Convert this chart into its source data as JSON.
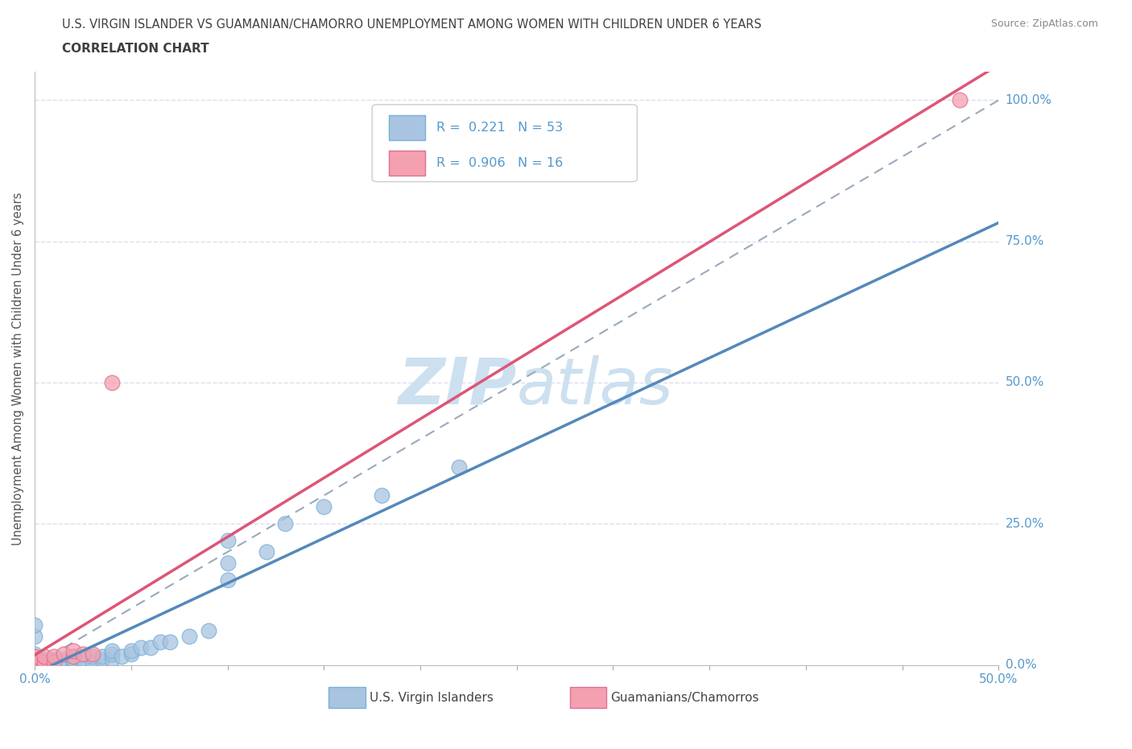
{
  "title_line1": "U.S. VIRGIN ISLANDER VS GUAMANIAN/CHAMORRO UNEMPLOYMENT AMONG WOMEN WITH CHILDREN UNDER 6 YEARS",
  "title_line2": "CORRELATION CHART",
  "source": "Source: ZipAtlas.com",
  "ylabel": "Unemployment Among Women with Children Under 6 years",
  "xlim": [
    0.0,
    0.5
  ],
  "ylim": [
    0.0,
    1.05
  ],
  "xticks": [
    0.0,
    0.05,
    0.1,
    0.15,
    0.2,
    0.25,
    0.3,
    0.35,
    0.4,
    0.45,
    0.5
  ],
  "xticklabels": [
    "0.0%",
    "",
    "",
    "",
    "",
    "",
    "",
    "",
    "",
    "",
    "50.0%"
  ],
  "ytick_positions": [
    0.0,
    0.25,
    0.5,
    0.75,
    1.0
  ],
  "ytick_labels": [
    "0.0%",
    "25.0%",
    "50.0%",
    "75.0%",
    "100.0%"
  ],
  "blue_R": 0.221,
  "blue_N": 53,
  "pink_R": 0.906,
  "pink_N": 16,
  "blue_color": "#a8c4e0",
  "blue_edge_color": "#7ab0d8",
  "pink_color": "#f4a0b0",
  "pink_edge_color": "#e07090",
  "blue_line_color": "#5588bb",
  "pink_line_color": "#dd5577",
  "ref_line_color": "#99aabb",
  "grid_color": "#ddddee",
  "title_color": "#404040",
  "axis_label_color": "#5599cc",
  "watermark_color": "#cce0f0",
  "legend_R_color": "#5599cc",
  "background_color": "#ffffff",
  "blue_x": [
    0.0,
    0.0,
    0.0,
    0.0,
    0.0,
    0.0,
    0.0,
    0.0,
    0.0,
    0.0,
    0.0,
    0.0,
    0.0,
    0.005,
    0.005,
    0.005,
    0.005,
    0.01,
    0.01,
    0.01,
    0.01,
    0.015,
    0.015,
    0.02,
    0.02,
    0.02,
    0.02,
    0.025,
    0.025,
    0.03,
    0.03,
    0.035,
    0.035,
    0.04,
    0.04,
    0.04,
    0.045,
    0.05,
    0.05,
    0.055,
    0.06,
    0.065,
    0.07,
    0.08,
    0.09,
    0.1,
    0.1,
    0.1,
    0.12,
    0.13,
    0.15,
    0.18,
    0.22
  ],
  "blue_y": [
    0.0,
    0.0,
    0.0,
    0.0,
    0.0,
    0.005,
    0.005,
    0.01,
    0.01,
    0.015,
    0.02,
    0.05,
    0.07,
    0.0,
    0.0,
    0.005,
    0.01,
    0.0,
    0.0,
    0.005,
    0.01,
    0.005,
    0.01,
    0.0,
    0.005,
    0.01,
    0.015,
    0.005,
    0.01,
    0.005,
    0.015,
    0.01,
    0.015,
    0.01,
    0.02,
    0.025,
    0.015,
    0.02,
    0.025,
    0.03,
    0.03,
    0.04,
    0.04,
    0.05,
    0.06,
    0.15,
    0.18,
    0.22,
    0.2,
    0.25,
    0.28,
    0.3,
    0.35
  ],
  "pink_x": [
    0.0,
    0.0,
    0.0,
    0.0,
    0.005,
    0.005,
    0.005,
    0.01,
    0.01,
    0.015,
    0.02,
    0.02,
    0.025,
    0.03,
    0.04,
    0.48
  ],
  "pink_y": [
    0.0,
    0.005,
    0.01,
    0.015,
    0.0,
    0.005,
    0.015,
    0.005,
    0.015,
    0.02,
    0.015,
    0.025,
    0.02,
    0.02,
    0.5,
    1.0
  ]
}
